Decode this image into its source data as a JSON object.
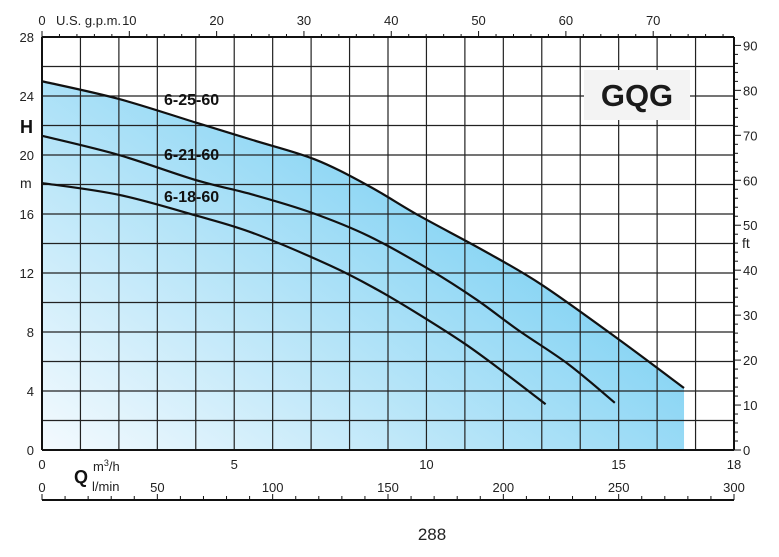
{
  "chart_data": {
    "type": "line",
    "title": "GQG",
    "page_number": "288",
    "xlabel": "Q",
    "x_units": [
      "m³/h",
      "l/min"
    ],
    "x_units_sup": {
      "base": "m",
      "sup": "3",
      "tail": "/h"
    },
    "top_axis_label": "U.S. g.p.m.",
    "ylabel": "H",
    "y_units": "m",
    "right_axis_units": "ft",
    "xlim": [
      0,
      18
    ],
    "ylim": [
      0,
      28
    ],
    "grid": true,
    "x_ticks": [
      "0",
      "5",
      "10",
      "15",
      "18"
    ],
    "x_tick_values": [
      0,
      5,
      10,
      15,
      18
    ],
    "lmin_ticks": [
      "0",
      "50",
      "100",
      "150",
      "200",
      "250",
      "300"
    ],
    "gpm_ticks": [
      "0",
      "10",
      "20",
      "30",
      "40",
      "50",
      "60",
      "70"
    ],
    "y_ticks": [
      "0",
      "4",
      "8",
      "12",
      "16",
      "20",
      "24",
      "28"
    ],
    "ft_ticks": [
      "0",
      "10",
      "20",
      "30",
      "40",
      "50",
      "60",
      "70",
      "80",
      "90"
    ],
    "series": [
      {
        "name": "6-25-60",
        "x": [
          0,
          2,
          4,
          5.5,
          7.1,
          8.5,
          9.8,
          11.5,
          13,
          15,
          16.7
        ],
        "y": [
          25,
          23.8,
          22.2,
          21,
          19.7,
          17.9,
          15.9,
          13.5,
          11.2,
          7.5,
          4.2
        ]
      },
      {
        "name": "6-21-60",
        "x": [
          0,
          2,
          4,
          5.5,
          7,
          8.5,
          10.1,
          11.3,
          12.4,
          13.7,
          14.9
        ],
        "y": [
          21.3,
          20,
          18.3,
          17.3,
          16.1,
          14.5,
          12.2,
          10.2,
          8.1,
          5.8,
          3.2
        ]
      },
      {
        "name": "6-18-60",
        "x": [
          0,
          2,
          4,
          5.5,
          7.5,
          8.7,
          9.8,
          11,
          12,
          13.1
        ],
        "y": [
          18.1,
          17.3,
          15.9,
          14.7,
          12.5,
          10.9,
          9.2,
          7.2,
          5.3,
          3.1
        ]
      }
    ],
    "colors": {
      "fill_light": "#eef7fd",
      "fill_dark": "#5ec6f0",
      "line": "#111111",
      "grid": "#222222"
    }
  }
}
